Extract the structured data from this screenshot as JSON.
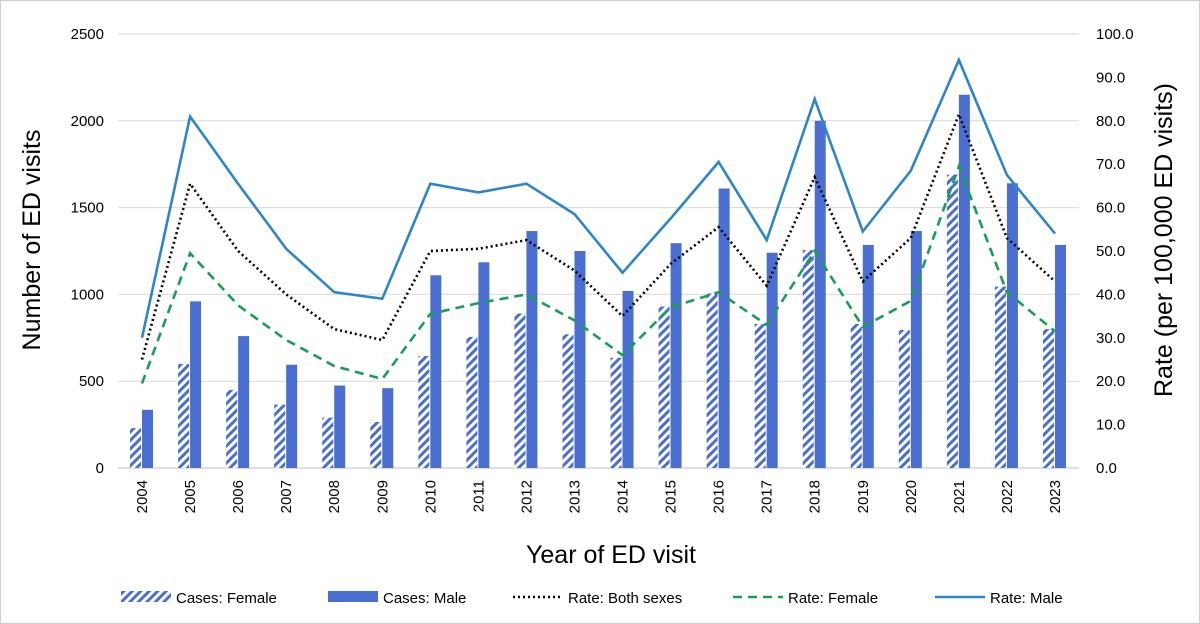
{
  "chart_data": {
    "type": "bar",
    "categories": [
      "2004",
      "2005",
      "2006",
      "2007",
      "2008",
      "2009",
      "2010",
      "2011",
      "2012",
      "2013",
      "2014",
      "2015",
      "2016",
      "2017",
      "2018",
      "2019",
      "2020",
      "2021",
      "2022",
      "2023"
    ],
    "xlabel": "Year of ED visit",
    "ylabel": "Number of ED visits",
    "y2label": "Rate (per 100,000 ED visits)",
    "ylim": [
      0,
      2500
    ],
    "y2lim": [
      0,
      100
    ],
    "yticks": [
      "0",
      "500",
      "1000",
      "1500",
      "2000",
      "2500"
    ],
    "y2ticks": [
      "0.0",
      "10.0",
      "20.0",
      "30.0",
      "40.0",
      "50.0",
      "60.0",
      "70.0",
      "80.0",
      "90.0",
      "100.0"
    ],
    "grid": true,
    "legend_position": "bottom",
    "bar_series": [
      {
        "name": "Cases: Female",
        "color": "#4a6fd0",
        "pattern": "hatched",
        "values": [
          230,
          600,
          450,
          365,
          290,
          265,
          645,
          755,
          890,
          770,
          635,
          930,
          1005,
          830,
          1255,
          830,
          795,
          1690,
          1045,
          800
        ]
      },
      {
        "name": "Cases: Male",
        "color": "#4a6fd0",
        "pattern": "solid",
        "values": [
          335,
          960,
          760,
          595,
          475,
          460,
          1110,
          1185,
          1365,
          1250,
          1020,
          1295,
          1610,
          1240,
          2000,
          1285,
          1365,
          2150,
          1640,
          1285
        ]
      }
    ],
    "line_series": [
      {
        "name": "Rate: Both sexes",
        "color": "#000000",
        "style": "dotted",
        "values": [
          25.0,
          65.5,
          50.0,
          40.0,
          32.0,
          29.5,
          50.0,
          50.5,
          52.5,
          45.5,
          35.0,
          47.0,
          55.5,
          42.0,
          67.0,
          43.0,
          53.0,
          81.5,
          53.0,
          43.0
        ]
      },
      {
        "name": "Rate: Female",
        "color": "#1a9e55",
        "style": "dashed",
        "values": [
          19.5,
          49.5,
          37.5,
          29.5,
          23.5,
          20.5,
          35.5,
          38.0,
          40.0,
          34.0,
          26.0,
          37.0,
          40.5,
          33.0,
          50.0,
          32.5,
          38.5,
          69.5,
          40.5,
          31.5
        ]
      },
      {
        "name": "Rate: Male",
        "color": "#2e86c8",
        "style": "solid",
        "values": [
          30.0,
          81.0,
          65.5,
          50.5,
          40.5,
          39.0,
          65.5,
          63.5,
          65.5,
          58.5,
          45.0,
          57.5,
          70.5,
          52.5,
          85.0,
          54.5,
          68.5,
          94.0,
          67.5,
          54.0
        ]
      }
    ]
  },
  "legend": {
    "items": [
      "Cases: Female",
      "Cases: Male",
      "Rate: Both sexes",
      "Rate: Female",
      "Rate: Male"
    ]
  }
}
